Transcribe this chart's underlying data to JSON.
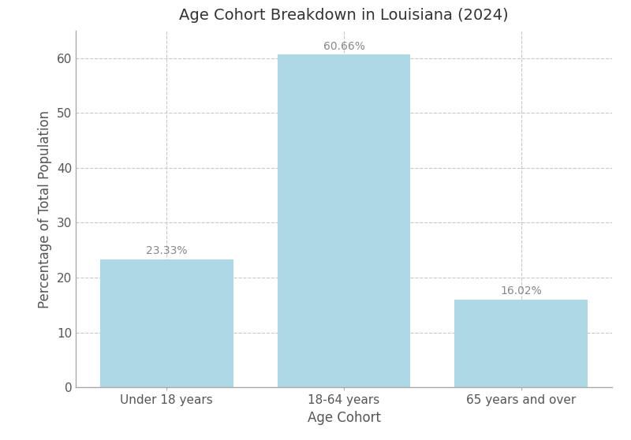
{
  "title": "Age Cohort Breakdown in Louisiana (2024)",
  "xlabel": "Age Cohort",
  "ylabel": "Percentage of Total Population",
  "categories": [
    "Under 18 years",
    "18-64 years",
    "65 years and over"
  ],
  "values": [
    23.33,
    60.66,
    16.02
  ],
  "labels": [
    "23.33%",
    "60.66%",
    "16.02%"
  ],
  "bar_color": "#add8e6",
  "background_color": "#ffffff",
  "grid_color": "#c8c8c8",
  "ylim": [
    0,
    65
  ],
  "yticks": [
    0,
    10,
    20,
    30,
    40,
    50,
    60
  ],
  "bar_width": 0.75,
  "title_fontsize": 14,
  "label_fontsize": 12,
  "tick_fontsize": 11,
  "annotation_fontsize": 10,
  "annotation_color": "#888888",
  "spine_color": "#aaaaaa",
  "tick_color": "#555555"
}
